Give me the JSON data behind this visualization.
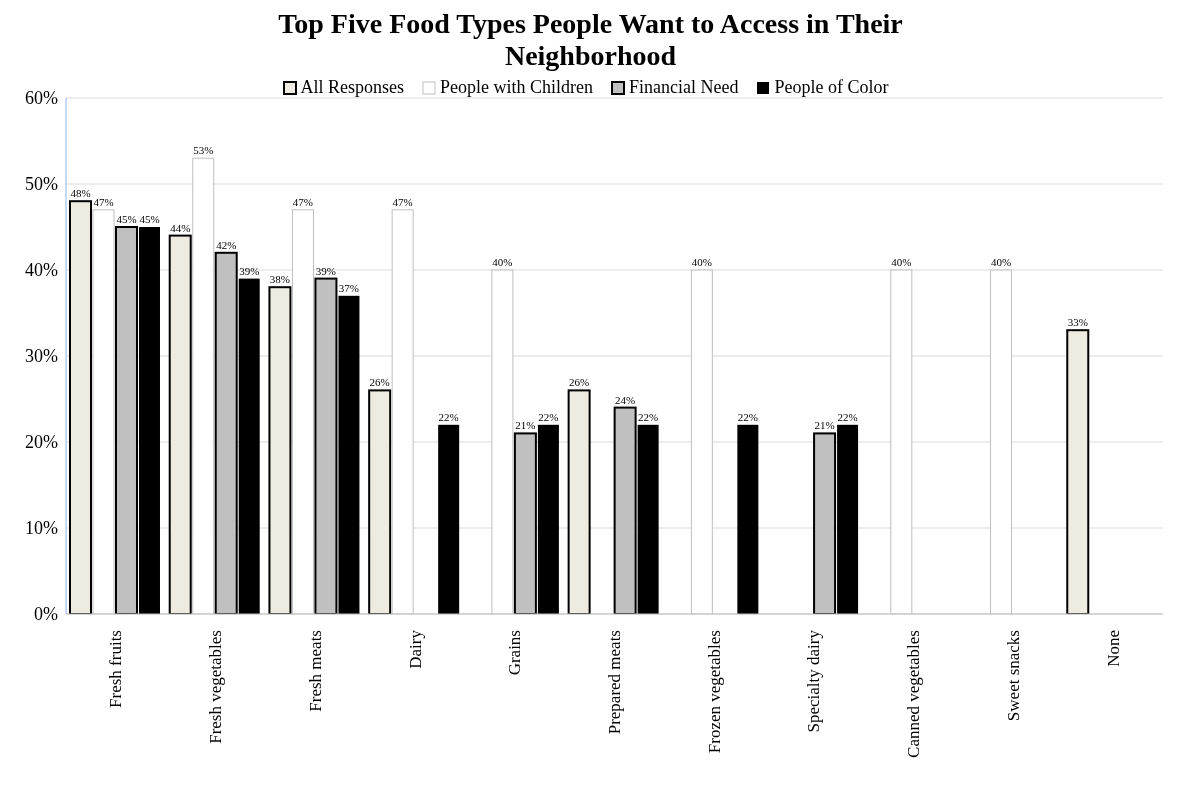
{
  "chart_data": {
    "type": "bar",
    "title": "Top Five Food Types People Want to Access in Their Neighborhood",
    "categories": [
      "Fresh fruits",
      "Fresh vegetables",
      "Fresh meats",
      "Dairy",
      "Grains",
      "Prepared meats",
      "Frozen vegetables",
      "Specialty dairy",
      "Canned vegetables",
      "Sweet snacks",
      "None"
    ],
    "series": [
      {
        "name": "All Responses",
        "color": "#eeebe0",
        "values": [
          48,
          44,
          38,
          26,
          null,
          26,
          null,
          null,
          null,
          null,
          33
        ],
        "value_labels": [
          "48%",
          "44%",
          "38%",
          "26%",
          null,
          "26%",
          null,
          null,
          null,
          null,
          "33%"
        ]
      },
      {
        "name": "People with Children",
        "color": "#ffffff",
        "values": [
          47,
          53,
          47,
          47,
          40,
          null,
          40,
          null,
          40,
          40,
          null
        ],
        "value_labels": [
          "47%",
          "53%",
          "47%",
          "47%",
          "40%",
          null,
          "40%",
          null,
          "40%",
          "40%",
          null
        ]
      },
      {
        "name": "Financial Need",
        "color": "#c0c0c0",
        "values": [
          45,
          42,
          39,
          null,
          21,
          24,
          null,
          21,
          null,
          null,
          null
        ],
        "value_labels": [
          "45%",
          "42%",
          "39%",
          null,
          "21%",
          "24%",
          null,
          "21%",
          null,
          null,
          null
        ]
      },
      {
        "name": "People of Color",
        "color": "#000000",
        "values": [
          45,
          39,
          37,
          22,
          22,
          22,
          22,
          22,
          null,
          null,
          null
        ],
        "value_labels": [
          "45%",
          "39%",
          "37%",
          "22%",
          "22%",
          "22%",
          "22%",
          "22%",
          null,
          null,
          null
        ]
      }
    ],
    "ylim": [
      0,
      60
    ],
    "yticks": [
      {
        "value": 0,
        "label": "0%"
      },
      {
        "value": 10,
        "label": "10%"
      },
      {
        "value": 20,
        "label": "20%"
      },
      {
        "value": 30,
        "label": "30%"
      },
      {
        "value": 40,
        "label": "40%"
      },
      {
        "value": 50,
        "label": "50%"
      },
      {
        "value": 60,
        "label": "60%"
      }
    ],
    "grid": "y",
    "legend": "top"
  }
}
